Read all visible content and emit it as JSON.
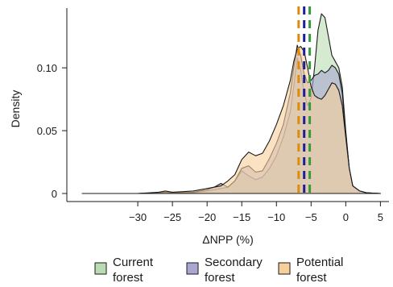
{
  "chart_data": {
    "type": "area",
    "title": "",
    "xlabel": "ΔNPP (%)",
    "ylabel": "Density",
    "xlim": [
      -40,
      6
    ],
    "ylim": [
      0,
      0.145
    ],
    "x_ticks": [
      -30,
      -25,
      -20,
      -15,
      -10,
      -5,
      0,
      5
    ],
    "x_tick_labels": [
      "−30",
      "−25",
      "−20",
      "−15",
      "−10",
      "−5",
      "0",
      "5"
    ],
    "y_ticks": [
      0,
      0.05,
      0.1
    ],
    "y_tick_labels": [
      "0",
      "0.05",
      "0.10"
    ],
    "grid": false,
    "legend_position": "bottom",
    "series": [
      {
        "name": "Current forest",
        "color": "#b9dcb3",
        "mean_line_color": "#3a9a3a",
        "mean": -5.2,
        "x": [
          -38,
          -30,
          -27,
          -26,
          -25,
          -22,
          -20,
          -19,
          -18,
          -17,
          -16,
          -15,
          -14,
          -13,
          -12,
          -11,
          -10,
          -9,
          -8,
          -7.5,
          -7,
          -6.5,
          -6,
          -5.5,
          -5,
          -4.5,
          -4,
          -3.5,
          -3,
          -2.5,
          -2,
          -1.5,
          -1,
          -0.5,
          0,
          0.5,
          1,
          2,
          3,
          5
        ],
        "y": [
          0,
          0,
          0.0005,
          0.001,
          0.0005,
          0.0005,
          0.002,
          0.003,
          0.004,
          0.005,
          0.01,
          0.018,
          0.014,
          0.011,
          0.013,
          0.02,
          0.03,
          0.045,
          0.065,
          0.085,
          0.108,
          0.098,
          0.08,
          0.07,
          0.076,
          0.1,
          0.13,
          0.143,
          0.14,
          0.125,
          0.11,
          0.105,
          0.1,
          0.085,
          0.05,
          0.02,
          0.006,
          0.002,
          0.0005,
          0
        ]
      },
      {
        "name": "Secondary forest",
        "color": "#a9a6cf",
        "mean_line_color": "#1f1f8f",
        "mean": -6.0,
        "x": [
          -38,
          -30,
          -27,
          -26,
          -25,
          -22,
          -20,
          -19,
          -18,
          -17,
          -16,
          -15,
          -14,
          -13,
          -12,
          -11,
          -10,
          -9,
          -8,
          -7.5,
          -7,
          -6.5,
          -6,
          -5.5,
          -5,
          -4.5,
          -4,
          -3.5,
          -3,
          -2.5,
          -2,
          -1.5,
          -1,
          -0.5,
          0,
          0.5,
          1,
          2,
          3,
          5
        ],
        "y": [
          0,
          0,
          0.0005,
          0.001,
          0.0005,
          0.001,
          0.003,
          0.005,
          0.008,
          0.005,
          0.01,
          0.02,
          0.022,
          0.017,
          0.018,
          0.028,
          0.04,
          0.055,
          0.08,
          0.1,
          0.118,
          0.11,
          0.095,
          0.088,
          0.09,
          0.094,
          0.095,
          0.098,
          0.096,
          0.098,
          0.102,
          0.1,
          0.095,
          0.08,
          0.048,
          0.02,
          0.006,
          0.002,
          0.0005,
          0
        ]
      },
      {
        "name": "Potential forest",
        "color": "#f6cf9b",
        "mean_line_color": "#e08a10",
        "mean": -6.8,
        "x": [
          -38,
          -30,
          -27,
          -26,
          -25,
          -22,
          -20,
          -19,
          -18,
          -17,
          -16,
          -15,
          -14,
          -13,
          -12,
          -11,
          -10,
          -9,
          -8,
          -7.5,
          -7,
          -6.5,
          -6,
          -5.5,
          -5,
          -4.5,
          -4,
          -3.5,
          -3,
          -2.5,
          -2,
          -1.5,
          -1,
          -0.5,
          0,
          0.5,
          1,
          2,
          3,
          5
        ],
        "y": [
          0,
          0,
          0.001,
          0.002,
          0.001,
          0.002,
          0.004,
          0.005,
          0.006,
          0.01,
          0.015,
          0.027,
          0.033,
          0.03,
          0.032,
          0.042,
          0.055,
          0.07,
          0.09,
          0.105,
          0.115,
          0.117,
          0.113,
          0.1,
          0.085,
          0.078,
          0.076,
          0.075,
          0.078,
          0.083,
          0.088,
          0.087,
          0.082,
          0.07,
          0.045,
          0.02,
          0.006,
          0.002,
          0.0005,
          0
        ]
      }
    ]
  }
}
